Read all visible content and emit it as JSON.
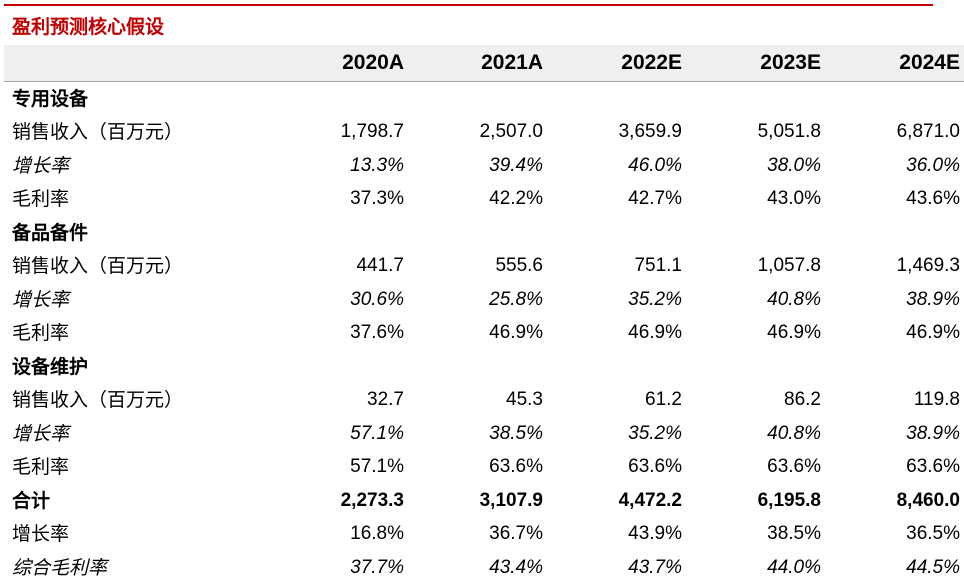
{
  "title": "盈利预测核心假设",
  "header": {
    "label": "",
    "years": [
      "2020A",
      "2021A",
      "2022E",
      "2023E",
      "2024E"
    ]
  },
  "rows": [
    {
      "type": "section",
      "label": "专用设备",
      "values": [
        "",
        "",
        "",
        "",
        ""
      ]
    },
    {
      "type": "normal",
      "label": "销售收入（百万元）",
      "values": [
        "1,798.7",
        "2,507.0",
        "3,659.9",
        "5,051.8",
        "6,871.0"
      ]
    },
    {
      "type": "italic",
      "label": "增长率",
      "values": [
        "13.3%",
        "39.4%",
        "46.0%",
        "38.0%",
        "36.0%"
      ]
    },
    {
      "type": "normal",
      "label": "毛利率",
      "values": [
        "37.3%",
        "42.2%",
        "42.7%",
        "43.0%",
        "43.6%"
      ]
    },
    {
      "type": "section",
      "label": "备品备件",
      "values": [
        "",
        "",
        "",
        "",
        ""
      ]
    },
    {
      "type": "normal",
      "label": "销售收入（百万元）",
      "values": [
        "441.7",
        "555.6",
        "751.1",
        "1,057.8",
        "1,469.3"
      ]
    },
    {
      "type": "italic",
      "label": "增长率",
      "values": [
        "30.6%",
        "25.8%",
        "35.2%",
        "40.8%",
        "38.9%"
      ]
    },
    {
      "type": "normal",
      "label": "毛利率",
      "values": [
        "37.6%",
        "46.9%",
        "46.9%",
        "46.9%",
        "46.9%"
      ]
    },
    {
      "type": "section",
      "label": "设备维护",
      "values": [
        "",
        "",
        "",
        "",
        ""
      ]
    },
    {
      "type": "normal",
      "label": "销售收入（百万元）",
      "values": [
        "32.7",
        "45.3",
        "61.2",
        "86.2",
        "119.8"
      ]
    },
    {
      "type": "italic",
      "label": "增长率",
      "values": [
        "57.1%",
        "38.5%",
        "35.2%",
        "40.8%",
        "38.9%"
      ]
    },
    {
      "type": "normal",
      "label": "毛利率",
      "values": [
        "57.1%",
        "63.6%",
        "63.6%",
        "63.6%",
        "63.6%"
      ]
    },
    {
      "type": "bold",
      "label": "合计",
      "values": [
        "2,273.3",
        "3,107.9",
        "4,472.2",
        "6,195.8",
        "8,460.0"
      ]
    },
    {
      "type": "normal",
      "label": "增长率",
      "values": [
        "16.8%",
        "36.7%",
        "43.9%",
        "38.5%",
        "36.5%"
      ]
    },
    {
      "type": "italic",
      "label": "综合毛利率",
      "values": [
        "37.7%",
        "43.4%",
        "43.7%",
        "44.0%",
        "44.5%"
      ]
    }
  ],
  "colors": {
    "accent": "#c00000",
    "header_bg": "#efefef"
  }
}
